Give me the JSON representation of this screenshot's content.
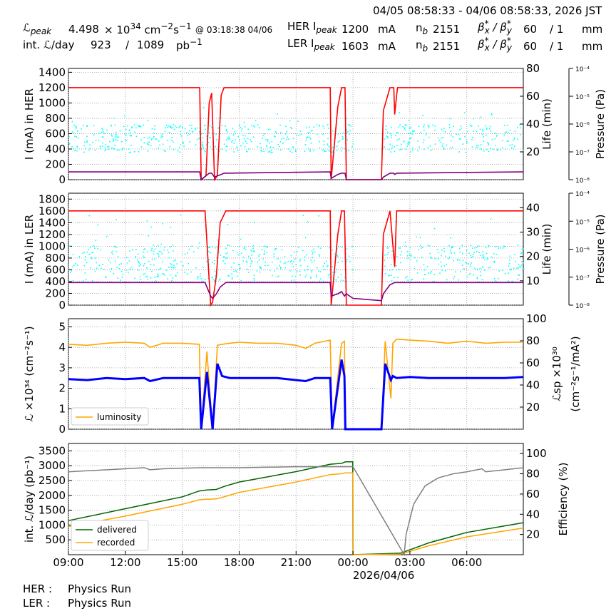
{
  "header": {
    "date_range": "04/05 08:58:33 - 04/06 08:58:33, 2026 JST",
    "lpeak_label": "ℒ",
    "lpeak_sub": "peak",
    "lpeak_value": "4.498",
    "lpeak_unit_prefix": "× 10",
    "lpeak_exp": "34",
    "lpeak_unit": "cm",
    "lpeak_unit_exp1": "−2",
    "lpeak_unit_s": "s",
    "lpeak_unit_exp2": "−1",
    "lpeak_time": "@ 03:18:38 04/06",
    "intl_label": "int. ℒ/day",
    "intl_value1": "923",
    "intl_sep": "/",
    "intl_value2": "1089",
    "intl_unit": "pb",
    "intl_unit_exp": "−1",
    "her_label": "HER I",
    "her_sub": "peak",
    "her_value": "1200",
    "her_unit": "mA",
    "ler_label": "LER I",
    "ler_sub": "peak",
    "ler_value": "1603",
    "ler_unit": "mA",
    "nb_label": "n",
    "nb_sub": "b",
    "nb_her": "2151",
    "nb_ler": "2151",
    "beta_label": "β",
    "beta_x": "x",
    "beta_y": "y",
    "beta_star": "*",
    "beta_slash": " / ",
    "beta_her": "60",
    "beta_her2": "/ 1",
    "beta_ler": "60",
    "beta_ler2": "/ 1",
    "beta_unit": "mm"
  },
  "footer": {
    "her_label": "HER :",
    "her_status": "Physics Run",
    "ler_label": "LER :",
    "ler_status": "Physics Run"
  },
  "colors": {
    "current": "#ff0000",
    "life": "#800080",
    "pressure": "#00ffff",
    "luminosity": "#ffa500",
    "specific_lumi": "#0000ff",
    "delivered": "#006400",
    "recorded": "#ffa500",
    "efficiency": "#808080"
  },
  "chart_data": [
    {
      "type": "line",
      "panel": "HER",
      "ylabel": "I (mA) in HER",
      "y2label": "Life (min)",
      "y3label": "Pressure (Pa)",
      "ylim": [
        0,
        1450
      ],
      "yticks": [
        "0",
        "200",
        "400",
        "600",
        "800",
        "1000",
        "1200",
        "1400"
      ],
      "y2lim": [
        0,
        80
      ],
      "y2ticks": [
        "20",
        "40",
        "60",
        "80"
      ],
      "y3ticks": [
        "10⁻⁸",
        "10⁻⁷",
        "10⁻⁶",
        "10⁻⁵",
        "10⁻⁴"
      ],
      "x_hours": [
        9,
        15.92,
        16.0,
        16.25,
        16.42,
        16.55,
        16.7,
        16.85,
        17.05,
        17.2,
        22.8,
        22.85,
        23.2,
        23.4,
        23.55,
        23.58,
        23.65,
        24.0,
        25.5,
        25.6,
        25.95,
        26.15,
        26.2,
        26.3,
        26.35,
        32.98
      ],
      "series": [
        {
          "name": "HER current",
          "values": [
            1200,
            1200,
            0,
            50,
            1000,
            1130,
            0,
            50,
            1100,
            1200,
            1200,
            0,
            950,
            1200,
            1200,
            1200,
            0,
            0,
            0,
            900,
            1200,
            1200,
            850,
            1100,
            1200,
            1200
          ]
        },
        {
          "name": "HER life",
          "values": [
            6,
            6,
            0,
            3,
            5,
            5,
            2,
            3,
            4,
            5,
            6,
            1,
            4,
            5,
            5,
            5,
            0,
            0,
            0,
            2,
            5,
            5,
            4,
            5,
            5,
            6
          ]
        }
      ],
      "pressure_band_min": 20,
      "pressure_band_max": 40
    },
    {
      "type": "line",
      "panel": "LER",
      "ylabel": "I (mA) in LER",
      "y2label": "Life (min)",
      "y3label": "Pressure (Pa)",
      "ylim": [
        0,
        1900
      ],
      "yticks": [
        "0",
        "200",
        "400",
        "600",
        "800",
        "1000",
        "1200",
        "1400",
        "1600",
        "1800"
      ],
      "y2lim": [
        0,
        46
      ],
      "y2ticks": [
        "10",
        "20",
        "30",
        "40"
      ],
      "y3ticks": [
        "10⁻⁸",
        "10⁻⁷",
        "10⁻⁶",
        "10⁻⁵",
        "10⁻⁴"
      ],
      "x_hours": [
        9,
        16.2,
        16.5,
        16.6,
        16.8,
        17.0,
        17.3,
        22.8,
        22.85,
        23.2,
        23.4,
        23.55,
        23.65,
        24.0,
        25.5,
        25.6,
        25.95,
        26.2,
        26.3,
        32.98
      ],
      "series": [
        {
          "name": "LER current",
          "values": [
            1600,
            1600,
            0,
            50,
            500,
            1400,
            1600,
            1600,
            0,
            1200,
            1600,
            1600,
            0,
            0,
            0,
            1200,
            1600,
            650,
            1600,
            1600
          ]
        },
        {
          "name": "LER life",
          "values": [
            10,
            10,
            4,
            3,
            5,
            8,
            10,
            10,
            4,
            5,
            6,
            4,
            5,
            3,
            2,
            5,
            9,
            10,
            10,
            10
          ]
        }
      ],
      "pressure_band_min": 10,
      "pressure_band_max": 25
    },
    {
      "type": "line",
      "panel": "Luminosity",
      "ylabel": "ℒ ×10³⁴ (cm⁻²s⁻¹)",
      "y2label": "ℒsp ×10³⁰ (cm⁻²s⁻¹/mA²)",
      "ylim": [
        0,
        5.4
      ],
      "yticks": [
        "0",
        "1",
        "2",
        "3",
        "4",
        "5"
      ],
      "y2lim": [
        0,
        100
      ],
      "y2ticks": [
        "20",
        "40",
        "60",
        "80",
        "100"
      ],
      "legend": [
        "luminosity"
      ],
      "legend_position": "lower-left",
      "x_hours": [
        9,
        10,
        11,
        12,
        13,
        13.3,
        14,
        15,
        15.9,
        16.0,
        16.3,
        16.6,
        16.85,
        17.1,
        17.5,
        18,
        19,
        20,
        21,
        21.5,
        22,
        22.8,
        22.9,
        23.4,
        23.55,
        23.6,
        24.0,
        25.5,
        25.7,
        26.0,
        26.1,
        26.3,
        27,
        28,
        29,
        30,
        31,
        32,
        32.98
      ],
      "series": [
        {
          "name": "luminosity",
          "values": [
            4.15,
            4.1,
            4.2,
            4.25,
            4.2,
            4.0,
            4.2,
            4.2,
            4.15,
            0,
            3.8,
            0,
            4.1,
            4.15,
            4.2,
            4.25,
            4.2,
            4.2,
            4.1,
            3.95,
            4.2,
            4.35,
            0,
            4.2,
            4.3,
            0,
            0,
            0,
            4.3,
            1.5,
            4.2,
            4.4,
            4.35,
            4.3,
            4.2,
            4.3,
            4.2,
            4.25,
            4.25
          ]
        },
        {
          "name": "specific luminosity",
          "values": [
            2.45,
            2.4,
            2.5,
            2.45,
            2.5,
            2.35,
            2.5,
            2.5,
            2.5,
            0,
            2.8,
            0,
            3.2,
            2.6,
            2.5,
            2.5,
            2.5,
            2.5,
            2.4,
            2.35,
            2.5,
            2.5,
            0,
            3.4,
            2.6,
            0,
            0,
            0,
            3.2,
            2.4,
            2.6,
            2.5,
            2.55,
            2.5,
            2.5,
            2.5,
            2.5,
            2.5,
            2.55
          ]
        }
      ]
    },
    {
      "type": "line",
      "panel": "Integrated",
      "ylabel": "int. ℒ/day (pb⁻¹)",
      "y2label": "Efficiency (%)",
      "xlabel": "2026/04/06",
      "ylim": [
        0,
        3750
      ],
      "yticks": [
        "500",
        "1000",
        "1500",
        "2000",
        "2500",
        "3000",
        "3500"
      ],
      "y2lim": [
        0,
        110
      ],
      "y2ticks": [
        "20",
        "40",
        "60",
        "80",
        "100"
      ],
      "xticks": [
        "09:00",
        "12:00",
        "15:00",
        "18:00",
        "21:00",
        "00:00",
        "03:00",
        "06:00"
      ],
      "xtick_hours": [
        9,
        12,
        15,
        18,
        21,
        24,
        27,
        30
      ],
      "legend": [
        "delivered",
        "recorded"
      ],
      "legend_position": "lower-left",
      "x_hours": [
        9,
        12,
        15,
        15.9,
        16.3,
        16.8,
        17.2,
        18,
        21,
        22.8,
        23.4,
        23.6,
        23.99,
        24.0,
        26.5,
        28,
        30,
        32.98
      ],
      "series": [
        {
          "name": "delivered",
          "values": [
            1150,
            1550,
            1950,
            2150,
            2180,
            2200,
            2300,
            2450,
            2800,
            3050,
            3080,
            3130,
            3130,
            0,
            50,
            400,
            750,
            1080
          ]
        },
        {
          "name": "recorded",
          "values": [
            950,
            1300,
            1700,
            1850,
            1870,
            1880,
            1950,
            2100,
            2450,
            2700,
            2730,
            2760,
            2760,
            0,
            20,
            300,
            600,
            900
          ]
        }
      ],
      "efficiency": {
        "x_hours": [
          9,
          10,
          12,
          13,
          13.3,
          14,
          16,
          18,
          21,
          24.0,
          26.7,
          26.8,
          27.2,
          27.8,
          28.5,
          29.3,
          30,
          30.8,
          31,
          32,
          32.98
        ],
        "values": [
          82,
          83,
          85,
          86,
          84,
          85,
          86,
          86,
          87,
          87,
          0,
          20,
          50,
          68,
          76,
          80,
          82,
          85,
          82,
          84,
          86
        ]
      }
    }
  ]
}
